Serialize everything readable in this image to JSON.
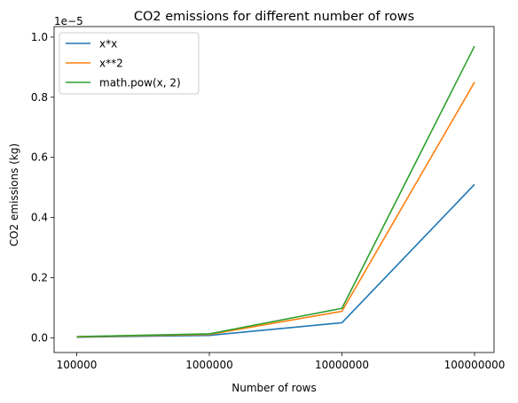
{
  "chart_data": {
    "type": "line",
    "title": "CO2 emissions for different number of rows",
    "xlabel": "Number of rows",
    "ylabel": "CO2 emissions (kg)",
    "y_offset_label": "1e−5",
    "x": [
      "100000",
      "1000000",
      "10000000",
      "100000000"
    ],
    "ylim": [
      -0.049,
      1.035
    ],
    "yticks": [
      "0.0",
      "0.2",
      "0.4",
      "0.6",
      "0.8",
      "1.0"
    ],
    "grid": false,
    "legend_position": "top-left",
    "series": [
      {
        "name": "x*x",
        "color": "#1f77b4",
        "values": [
          0.002,
          0.008,
          0.05,
          0.51
        ]
      },
      {
        "name": "x**2",
        "color": "#ff7f0e",
        "values": [
          0.003,
          0.011,
          0.088,
          0.85
        ]
      },
      {
        "name": "math.pow(x, 2)",
        "color": "#2ca02c",
        "values": [
          0.004,
          0.013,
          0.098,
          0.97
        ]
      }
    ]
  }
}
